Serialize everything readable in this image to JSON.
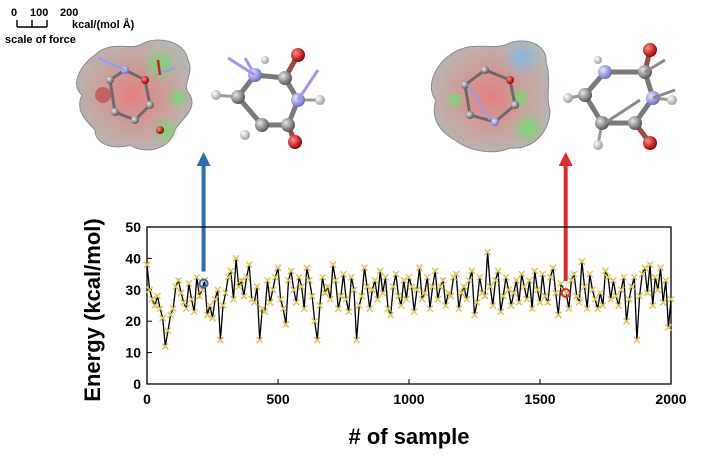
{
  "scale_bar": {
    "tick_labels": [
      "0",
      "100",
      "200"
    ],
    "unit": "kcal/(mol Å)",
    "caption": "scale of force"
  },
  "annotation_arrows": [
    {
      "sample_index": 216,
      "energy": 32,
      "color": "#2E6DB4"
    },
    {
      "sample_index": 1598,
      "energy": 29,
      "color": "#E0282E"
    }
  ],
  "colors": {
    "line": "#000000",
    "marker": "#D8C85A",
    "highlight_blue": "#2E6DB4",
    "highlight_red": "#E0282E"
  },
  "chart_data": {
    "type": "line",
    "title": "",
    "xlabel": "# of sample",
    "ylabel": "Energy (kcal/mol)",
    "xlim": [
      0,
      2000
    ],
    "ylim": [
      0,
      50
    ],
    "xticks": [
      0,
      500,
      1000,
      1500,
      2000
    ],
    "yticks": [
      0,
      10,
      20,
      30,
      40,
      50
    ],
    "grid": false,
    "series": [
      {
        "x": [
          0,
          10,
          20,
          30,
          40,
          50,
          60,
          70,
          80,
          90,
          100,
          110,
          120,
          130,
          140,
          150,
          160,
          170,
          180,
          190,
          200,
          210,
          220,
          230,
          240,
          250,
          260,
          270,
          280,
          290,
          300,
          310,
          320,
          330,
          340,
          350,
          360,
          370,
          380,
          390,
          400,
          410,
          420,
          430,
          440,
          450,
          460,
          470,
          480,
          490,
          500,
          510,
          520,
          530,
          540,
          550,
          560,
          570,
          580,
          590,
          600,
          610,
          620,
          630,
          640,
          650,
          660,
          670,
          680,
          690,
          700,
          710,
          720,
          730,
          740,
          750,
          760,
          770,
          780,
          790,
          800,
          810,
          820,
          830,
          840,
          850,
          860,
          870,
          880,
          890,
          900,
          910,
          920,
          930,
          940,
          950,
          960,
          970,
          980,
          990,
          1000,
          1010,
          1020,
          1030,
          1040,
          1050,
          1060,
          1070,
          1080,
          1090,
          1100,
          1110,
          1120,
          1130,
          1140,
          1150,
          1160,
          1170,
          1180,
          1190,
          1200,
          1210,
          1220,
          1230,
          1240,
          1250,
          1260,
          1270,
          1280,
          1290,
          1300,
          1310,
          1320,
          1330,
          1340,
          1350,
          1360,
          1370,
          1380,
          1390,
          1400,
          1410,
          1420,
          1430,
          1440,
          1450,
          1460,
          1470,
          1480,
          1490,
          1500,
          1510,
          1520,
          1530,
          1540,
          1550,
          1560,
          1570,
          1580,
          1590,
          1600,
          1610,
          1620,
          1630,
          1640,
          1650,
          1660,
          1670,
          1680,
          1690,
          1700,
          1710,
          1720,
          1730,
          1740,
          1750,
          1760,
          1770,
          1780,
          1790,
          1800,
          1810,
          1820,
          1830,
          1840,
          1850,
          1860,
          1870,
          1880,
          1890,
          1900,
          1910,
          1920,
          1930,
          1940,
          1950,
          1960,
          1970,
          1980,
          1990,
          2000
        ],
        "values": [
          38,
          30,
          27,
          25,
          28,
          24,
          21,
          12,
          17,
          22,
          24,
          31,
          33,
          29,
          26,
          24,
          32,
          27,
          23,
          34,
          28,
          30,
          33,
          22,
          25,
          21,
          27,
          30,
          14,
          25,
          29,
          34,
          36,
          27,
          40,
          31,
          33,
          28,
          34,
          38,
          27,
          26,
          31,
          14,
          24,
          23,
          33,
          26,
          30,
          34,
          37,
          27,
          24,
          19,
          33,
          36,
          30,
          26,
          34,
          31,
          24,
          37,
          33,
          28,
          20,
          14,
          25,
          34,
          29,
          31,
          27,
          38,
          33,
          24,
          28,
          35,
          27,
          23,
          34,
          30,
          14,
          25,
          28,
          37,
          31,
          24,
          30,
          33,
          27,
          36,
          29,
          34,
          24,
          22,
          31,
          35,
          28,
          25,
          33,
          27,
          34,
          31,
          23,
          30,
          37,
          27,
          29,
          34,
          24,
          31,
          36,
          27,
          31,
          33,
          25,
          29,
          28,
          34,
          35,
          24,
          29,
          31,
          27,
          33,
          36,
          22,
          26,
          34,
          29,
          28,
          42,
          31,
          25,
          33,
          36,
          23,
          28,
          34,
          30,
          25,
          29,
          33,
          26,
          35,
          31,
          27,
          33,
          24,
          36,
          30,
          26,
          35,
          28,
          26,
          34,
          37,
          29,
          22,
          32,
          30,
          29,
          24,
          33,
          35,
          28,
          26,
          39,
          31,
          24,
          35,
          30,
          27,
          24,
          29,
          25,
          36,
          34,
          27,
          33,
          28,
          25,
          30,
          34,
          20,
          27,
          31,
          34,
          14,
          28,
          35,
          37,
          29,
          38,
          25,
          34,
          30,
          37,
          26,
          33,
          18,
          27
        ]
      }
    ],
    "highlights": [
      {
        "x": 216,
        "y": 32,
        "color": "blue"
      },
      {
        "x": 1598,
        "y": 29,
        "color": "red"
      }
    ]
  }
}
